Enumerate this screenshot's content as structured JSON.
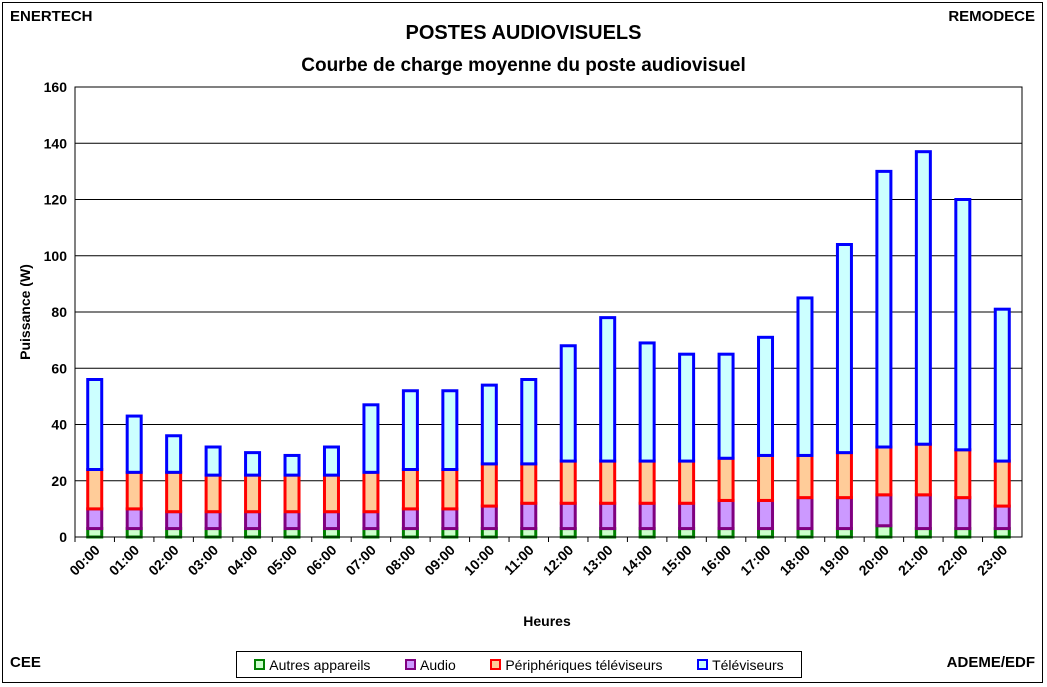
{
  "corners": {
    "top_left": "ENERTECH",
    "top_right": "REMODECE",
    "bottom_left": "CEE",
    "bottom_right": "ADEME/EDF"
  },
  "chart_data": {
    "type": "bar",
    "stacked": true,
    "title": "POSTES AUDIOVISUELS",
    "subtitle": "Courbe de charge moyenne du poste audiovisuel",
    "xlabel": "Heures",
    "ylabel": "Puissance (W)",
    "ylim": [
      0,
      160
    ],
    "yticks": [
      0,
      20,
      40,
      60,
      80,
      100,
      120,
      140,
      160
    ],
    "grid": true,
    "legend_position": "bottom",
    "categories": [
      "00:00",
      "01:00",
      "02:00",
      "03:00",
      "04:00",
      "05:00",
      "06:00",
      "07:00",
      "08:00",
      "09:00",
      "10:00",
      "11:00",
      "12:00",
      "13:00",
      "14:00",
      "15:00",
      "16:00",
      "17:00",
      "18:00",
      "19:00",
      "20:00",
      "21:00",
      "22:00",
      "23:00"
    ],
    "series": [
      {
        "name": "Autres appareils",
        "border": "#008000",
        "fill": "#ccffcc",
        "values": [
          3,
          3,
          3,
          3,
          3,
          3,
          3,
          3,
          3,
          3,
          3,
          3,
          3,
          3,
          3,
          3,
          3,
          3,
          3,
          3,
          4,
          3,
          3,
          3
        ]
      },
      {
        "name": "Audio",
        "border": "#800080",
        "fill": "#cc99ff",
        "values": [
          7,
          7,
          6,
          6,
          6,
          6,
          6,
          6,
          7,
          7,
          8,
          9,
          9,
          9,
          9,
          9,
          10,
          10,
          11,
          11,
          11,
          12,
          11,
          8
        ]
      },
      {
        "name": "Périphériques téléviseurs",
        "border": "#ff0000",
        "fill": "#ffcc99",
        "values": [
          14,
          13,
          14,
          13,
          13,
          13,
          13,
          14,
          14,
          14,
          15,
          14,
          15,
          15,
          15,
          15,
          15,
          16,
          15,
          16,
          17,
          18,
          17,
          16
        ]
      },
      {
        "name": "Téléviseurs",
        "border": "#0000ff",
        "fill": "#ccffff",
        "values": [
          32,
          20,
          13,
          10,
          8,
          7,
          10,
          24,
          28,
          28,
          28,
          30,
          41,
          51,
          42,
          38,
          37,
          42,
          56,
          74,
          98,
          104,
          89,
          54
        ]
      }
    ]
  }
}
